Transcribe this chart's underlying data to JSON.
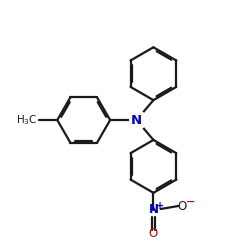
{
  "bg_color": "#ffffff",
  "bond_color": "#1a1a1a",
  "N_color": "#0000cc",
  "lw": 1.6,
  "dbo": 0.055,
  "ring_r": 0.8,
  "figsize": [
    2.5,
    2.5
  ],
  "dpi": 100,
  "xlim": [
    -3.2,
    4.2
  ],
  "ylim": [
    -4.2,
    3.2
  ]
}
